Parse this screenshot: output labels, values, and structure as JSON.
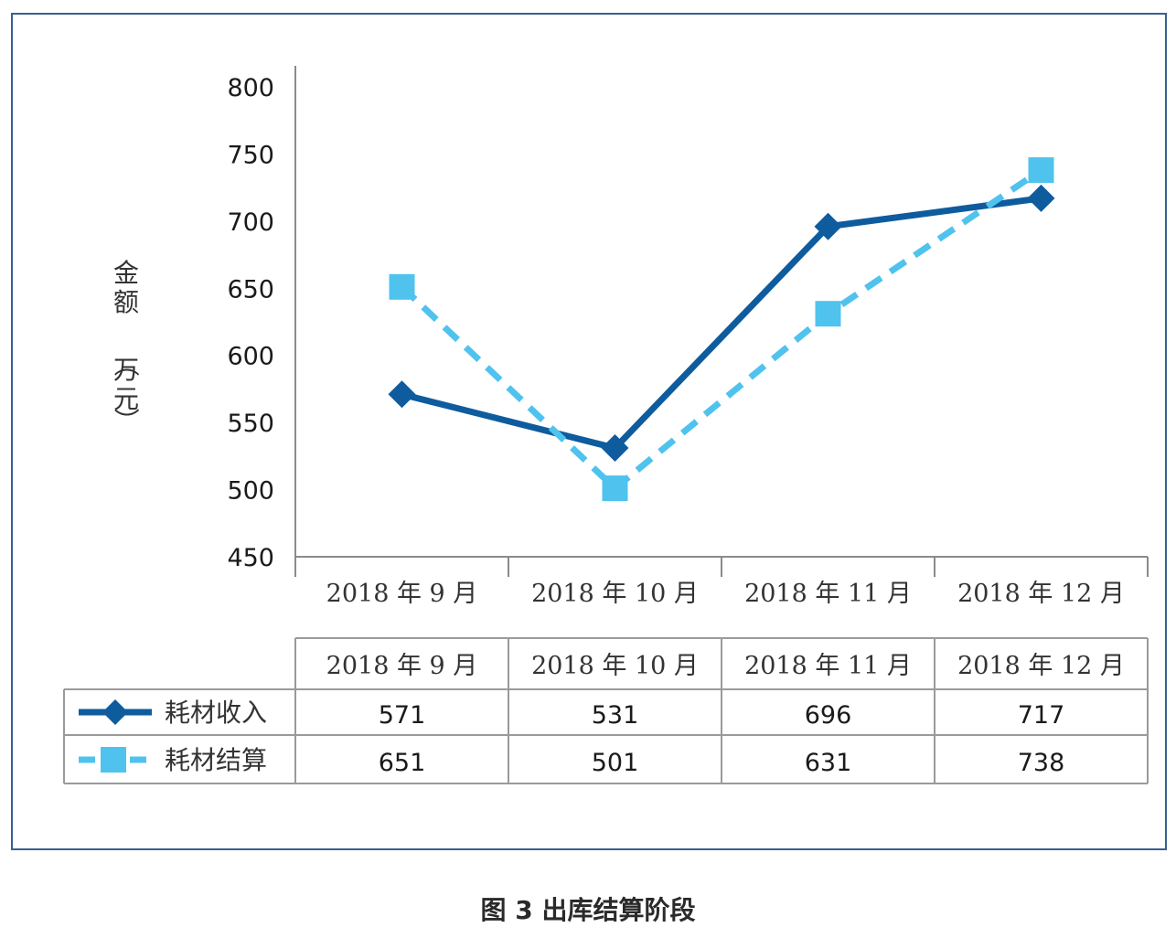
{
  "caption": "图 3  出库结算阶段",
  "chart_data": {
    "type": "line",
    "categories": [
      "2018 年 9 月",
      "2018 年 10 月",
      "2018 年 11 月",
      "2018 年 12 月"
    ],
    "series": [
      {
        "name": "耗材收入",
        "values": [
          571,
          531,
          696,
          717
        ],
        "color": "#0e5c9e",
        "style": "solid",
        "marker": "diamond"
      },
      {
        "name": "耗材结算",
        "values": [
          651,
          501,
          631,
          738
        ],
        "color": "#4fc3ee",
        "style": "dashed",
        "marker": "square"
      }
    ],
    "ylabel": "金额（万元）",
    "ylim": [
      450,
      800
    ],
    "yticks": [
      "800",
      "750",
      "700",
      "650",
      "600",
      "550",
      "500",
      "450"
    ],
    "data_table": true,
    "legend": "in data table"
  }
}
